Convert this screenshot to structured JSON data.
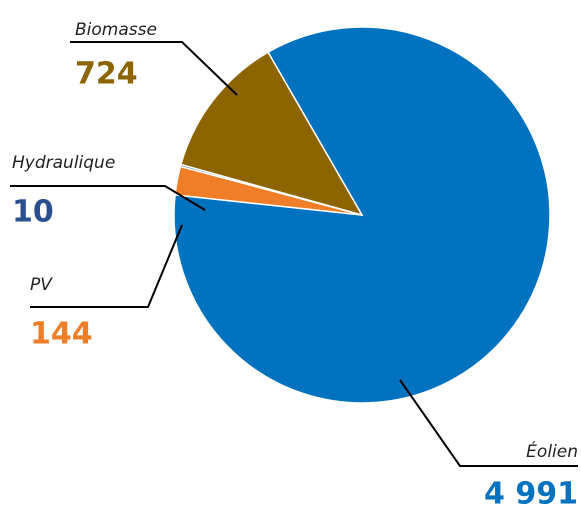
{
  "chart_data": {
    "type": "pie",
    "categories": [
      "Éolien",
      "PV",
      "Hydraulique",
      "Biomasse"
    ],
    "values": [
      4991,
      144,
      10,
      724
    ],
    "value_labels": [
      "4 991",
      "144",
      "10",
      "724"
    ],
    "colors": [
      "#0072bf",
      "#f07d28",
      "#2a4f8f",
      "#8c6400"
    ]
  }
}
